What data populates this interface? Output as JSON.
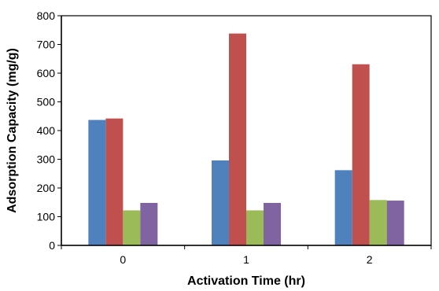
{
  "chart_data": {
    "type": "bar",
    "title": "",
    "xlabel": "Activation Time (hr)",
    "ylabel": "Adsorption Capacity (mg/g)",
    "categories": [
      "0",
      "1",
      "2"
    ],
    "ylim": [
      0,
      800
    ],
    "yticks": [
      "0",
      "100",
      "200",
      "300",
      "400",
      "500",
      "600",
      "700",
      "800"
    ],
    "grid": false,
    "legend": "none",
    "series": [
      {
        "color": "#4F81BD",
        "values": [
          437,
          296,
          262
        ]
      },
      {
        "color": "#C0504D",
        "values": [
          442,
          738,
          631
        ]
      },
      {
        "color": "#9BBB59",
        "values": [
          122,
          122,
          158
        ]
      },
      {
        "color": "#8064A2",
        "values": [
          148,
          148,
          156
        ]
      }
    ]
  }
}
